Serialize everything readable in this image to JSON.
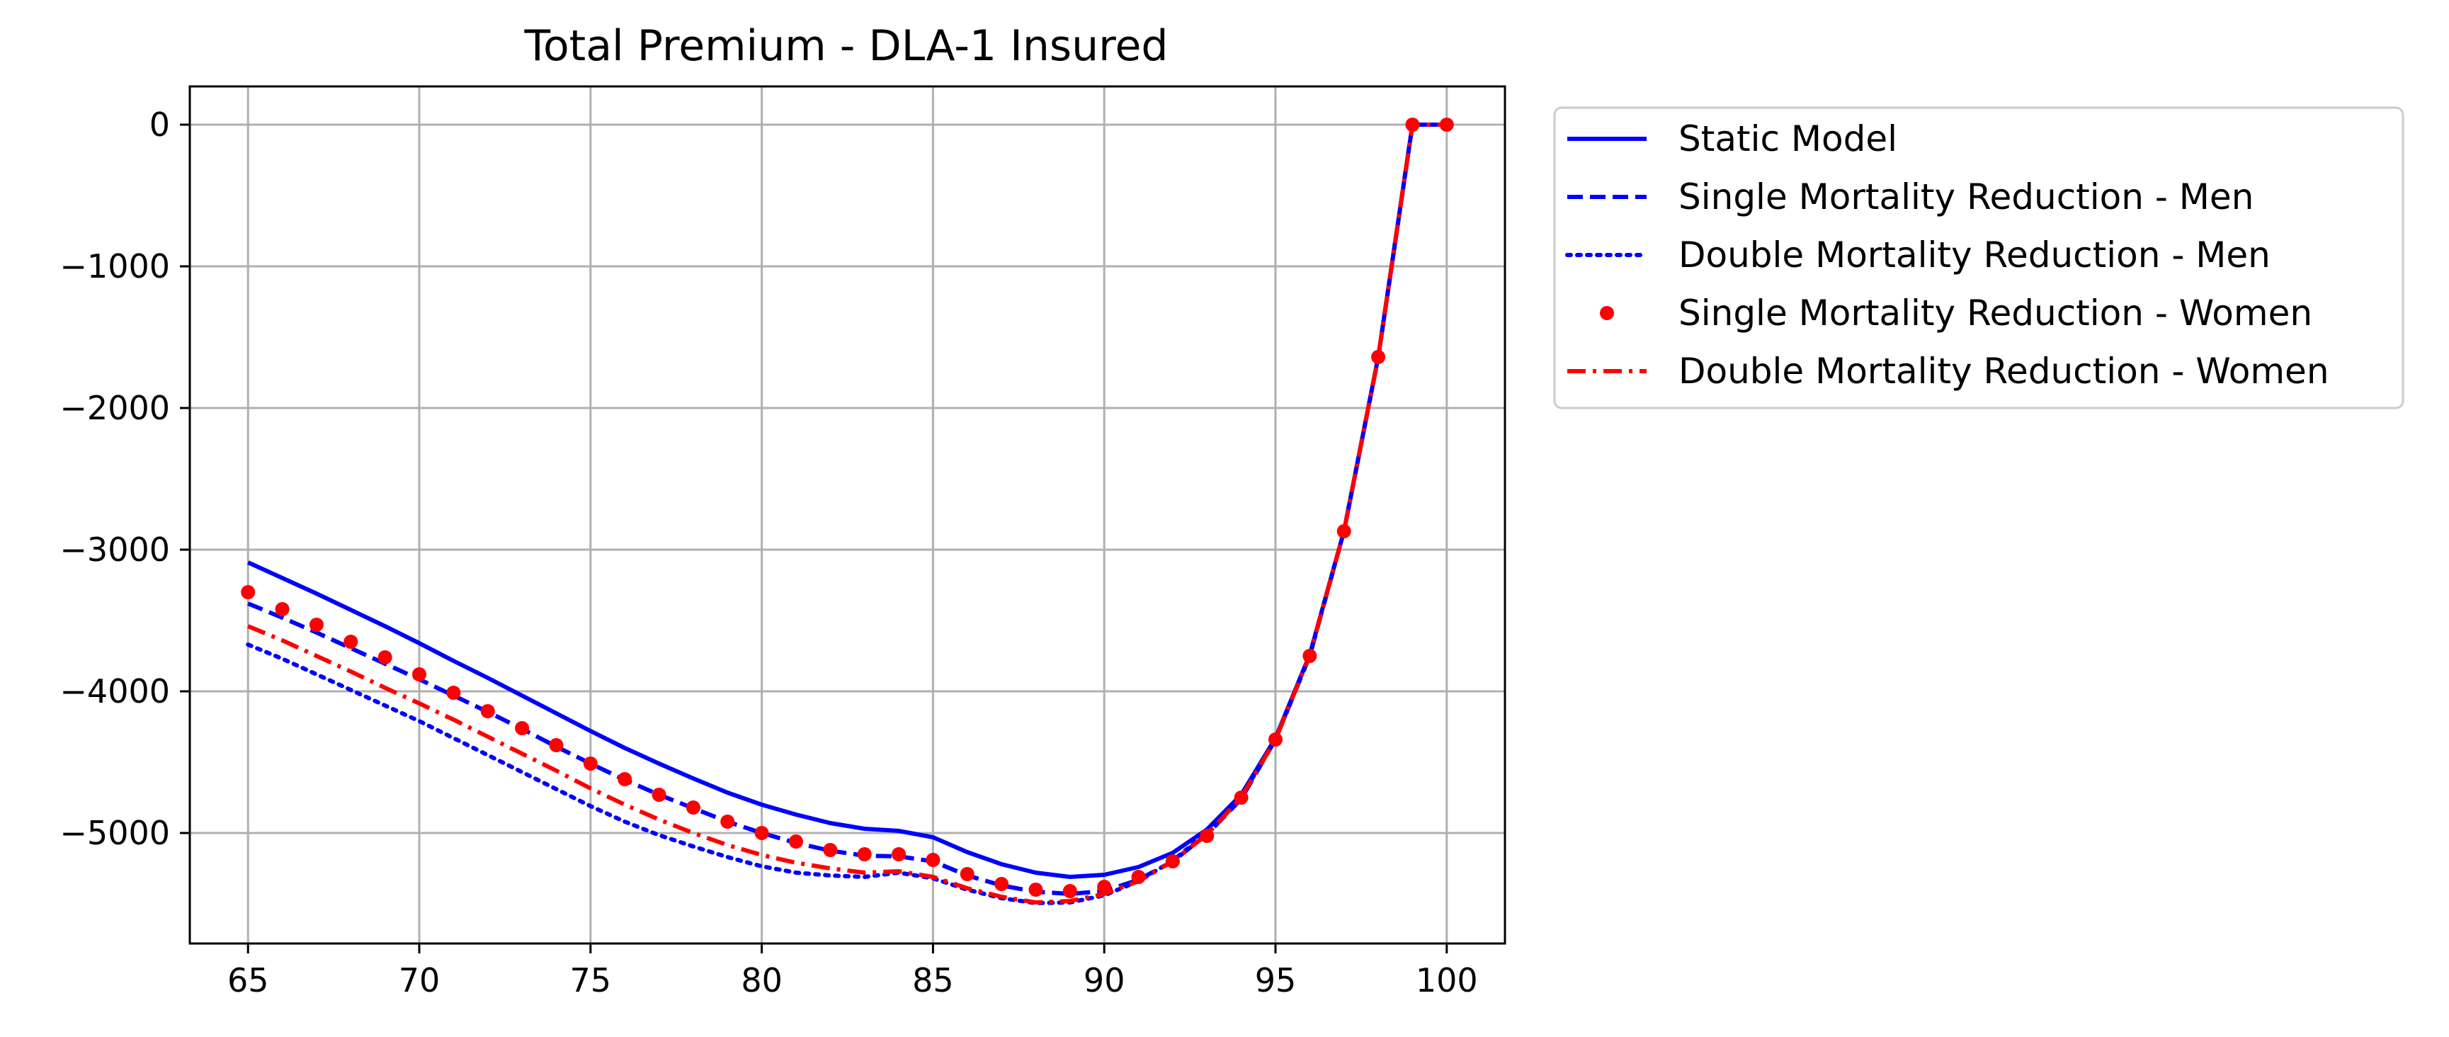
{
  "chart_data": {
    "type": "line",
    "title": "Total Premium - DLA-1 Insured",
    "xlabel": "",
    "ylabel": "",
    "xlim": [
      63.3,
      101.7
    ],
    "ylim": [
      -5780,
      270
    ],
    "grid": true,
    "legend_placement": "outside-top-right",
    "xticks": [
      65,
      70,
      75,
      80,
      85,
      90,
      95,
      100
    ],
    "xtick_labels": [
      "65",
      "70",
      "75",
      "80",
      "85",
      "90",
      "95",
      "100"
    ],
    "yticks": [
      0,
      -1000,
      -2000,
      -3000,
      -4000,
      -5000
    ],
    "ytick_labels": [
      "0",
      "−1000",
      "−2000",
      "−3000",
      "−4000",
      "−5000"
    ],
    "x": [
      65,
      66,
      67,
      68,
      69,
      70,
      71,
      72,
      73,
      74,
      75,
      76,
      77,
      78,
      79,
      80,
      81,
      82,
      83,
      84,
      85,
      86,
      87,
      88,
      89,
      90,
      91,
      92,
      93,
      94,
      95,
      96,
      97,
      98,
      99,
      100
    ],
    "series": [
      {
        "name": "Static Model",
        "color": "#0000ff",
        "style": "solid",
        "values": [
          -3090,
          -3200,
          -3310,
          -3425,
          -3540,
          -3660,
          -3785,
          -3905,
          -4030,
          -4155,
          -4280,
          -4400,
          -4510,
          -4615,
          -4715,
          -4800,
          -4870,
          -4930,
          -4970,
          -4985,
          -5030,
          -5135,
          -5220,
          -5280,
          -5310,
          -5295,
          -5240,
          -5140,
          -4975,
          -4730,
          -4330,
          -3740,
          -2870,
          -1640,
          0,
          0
        ]
      },
      {
        "name": "Single Mortality Reduction - Men",
        "color": "#0000ff",
        "style": "dashed",
        "values": [
          -3380,
          -3480,
          -3585,
          -3695,
          -3805,
          -3915,
          -4030,
          -4145,
          -4265,
          -4390,
          -4510,
          -4625,
          -4730,
          -4825,
          -4920,
          -5000,
          -5070,
          -5125,
          -5160,
          -5165,
          -5200,
          -5300,
          -5370,
          -5415,
          -5430,
          -5410,
          -5330,
          -5200,
          -5010,
          -4760,
          -4340,
          -3750,
          -2870,
          -1640,
          0,
          0
        ]
      },
      {
        "name": "Double Mortality Reduction - Men",
        "color": "#0000ff",
        "style": "dotted",
        "values": [
          -3670,
          -3770,
          -3880,
          -3990,
          -4100,
          -4210,
          -4330,
          -4450,
          -4570,
          -4690,
          -4810,
          -4920,
          -5015,
          -5095,
          -5170,
          -5235,
          -5280,
          -5300,
          -5310,
          -5280,
          -5320,
          -5400,
          -5460,
          -5495,
          -5490,
          -5440,
          -5340,
          -5195,
          -5000,
          -4745,
          -4340,
          -3740,
          -2870,
          -1640,
          0,
          0
        ]
      },
      {
        "name": "Single Mortality Reduction - Women",
        "color": "#ff0000",
        "style": "points",
        "values": [
          -3300,
          -3420,
          -3530,
          -3650,
          -3760,
          -3880,
          -4010,
          -4140,
          -4260,
          -4380,
          -4510,
          -4620,
          -4730,
          -4820,
          -4920,
          -5000,
          -5060,
          -5120,
          -5150,
          -5150,
          -5190,
          -5290,
          -5360,
          -5400,
          -5410,
          -5380,
          -5310,
          -5200,
          -5020,
          -4750,
          -4340,
          -3750,
          -2870,
          -1640,
          0,
          0
        ]
      },
      {
        "name": "Double Mortality Reduction - Women",
        "color": "#ff0000",
        "style": "dashdot",
        "values": [
          -3540,
          -3640,
          -3750,
          -3860,
          -3975,
          -4085,
          -4200,
          -4320,
          -4440,
          -4560,
          -4685,
          -4800,
          -4905,
          -5000,
          -5085,
          -5155,
          -5210,
          -5250,
          -5280,
          -5270,
          -5310,
          -5390,
          -5450,
          -5490,
          -5480,
          -5430,
          -5340,
          -5200,
          -5010,
          -4750,
          -4340,
          -3745,
          -2870,
          -1640,
          0,
          0
        ]
      }
    ]
  }
}
